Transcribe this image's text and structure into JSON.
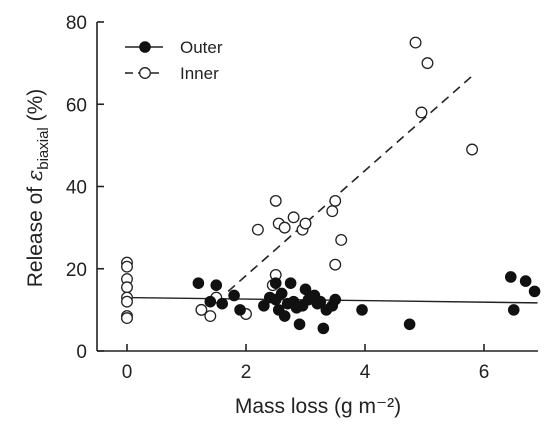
{
  "chart_data": {
    "type": "scatter",
    "xlabel": "Mass loss (g m⁻²)",
    "ylabel_prefix": "Release of ",
    "ylabel_symbol": "ε",
    "ylabel_subscript": "biaxial",
    "ylabel_suffix": " (%)",
    "xlim": [
      -0.5,
      7.0
    ],
    "ylim": [
      0,
      80
    ],
    "xticks": [
      0,
      2,
      4,
      6
    ],
    "yticks": [
      0,
      20,
      40,
      60,
      80
    ],
    "xtick_labels": [
      "0",
      "2",
      "4",
      "6"
    ],
    "ytick_labels": [
      "0",
      "20",
      "40",
      "60",
      "80"
    ],
    "legend_position": "top-left",
    "grid": false,
    "series": [
      {
        "name": "Outer",
        "marker": "filled-circle",
        "line_style": "solid",
        "points": [
          [
            1.2,
            16.5
          ],
          [
            1.4,
            12.0
          ],
          [
            1.5,
            16.0
          ],
          [
            1.6,
            11.5
          ],
          [
            1.8,
            13.5
          ],
          [
            1.9,
            10.0
          ],
          [
            2.3,
            11.0
          ],
          [
            2.4,
            13.0
          ],
          [
            2.5,
            12.5
          ],
          [
            2.5,
            16.5
          ],
          [
            2.55,
            10.0
          ],
          [
            2.6,
            14.0
          ],
          [
            2.65,
            8.5
          ],
          [
            2.7,
            11.5
          ],
          [
            2.75,
            16.5
          ],
          [
            2.8,
            12.0
          ],
          [
            2.85,
            10.5
          ],
          [
            2.9,
            6.5
          ],
          [
            2.95,
            11.0
          ],
          [
            3.0,
            15.0
          ],
          [
            3.05,
            12.5
          ],
          [
            3.15,
            13.5
          ],
          [
            3.2,
            11.5
          ],
          [
            3.25,
            12.0
          ],
          [
            3.3,
            5.5
          ],
          [
            3.35,
            10.0
          ],
          [
            3.45,
            11.0
          ],
          [
            3.5,
            12.5
          ],
          [
            3.95,
            10.0
          ],
          [
            4.75,
            6.5
          ],
          [
            6.45,
            18.0
          ],
          [
            6.5,
            10.0
          ],
          [
            6.7,
            17.0
          ],
          [
            6.85,
            14.5
          ]
        ],
        "fit": {
          "x": [
            0.0,
            6.9
          ],
          "y": [
            13.0,
            11.7
          ]
        }
      },
      {
        "name": "Inner",
        "marker": "open-circle",
        "line_style": "dashed",
        "points": [
          [
            0.0,
            21.5
          ],
          [
            0.0,
            20.5
          ],
          [
            0.0,
            17.5
          ],
          [
            0.0,
            15.5
          ],
          [
            0.0,
            13.0
          ],
          [
            0.0,
            12.0
          ],
          [
            0.0,
            8.5
          ],
          [
            0.0,
            8.0
          ],
          [
            1.25,
            10.0
          ],
          [
            1.4,
            8.5
          ],
          [
            1.5,
            13.0
          ],
          [
            2.0,
            9.0
          ],
          [
            2.2,
            29.5
          ],
          [
            2.45,
            16.0
          ],
          [
            2.5,
            36.5
          ],
          [
            2.5,
            18.5
          ],
          [
            2.55,
            31.0
          ],
          [
            2.65,
            30.0
          ],
          [
            2.8,
            32.5
          ],
          [
            2.95,
            29.5
          ],
          [
            3.0,
            31.0
          ],
          [
            3.45,
            34.0
          ],
          [
            3.5,
            36.5
          ],
          [
            3.5,
            21.0
          ],
          [
            3.6,
            27.0
          ],
          [
            4.85,
            75.0
          ],
          [
            4.95,
            58.0
          ],
          [
            5.05,
            70.0
          ],
          [
            5.8,
            49.0
          ]
        ],
        "fit": {
          "x": [
            1.7,
            5.85
          ],
          "y": [
            14.5,
            67.5
          ]
        }
      }
    ]
  }
}
